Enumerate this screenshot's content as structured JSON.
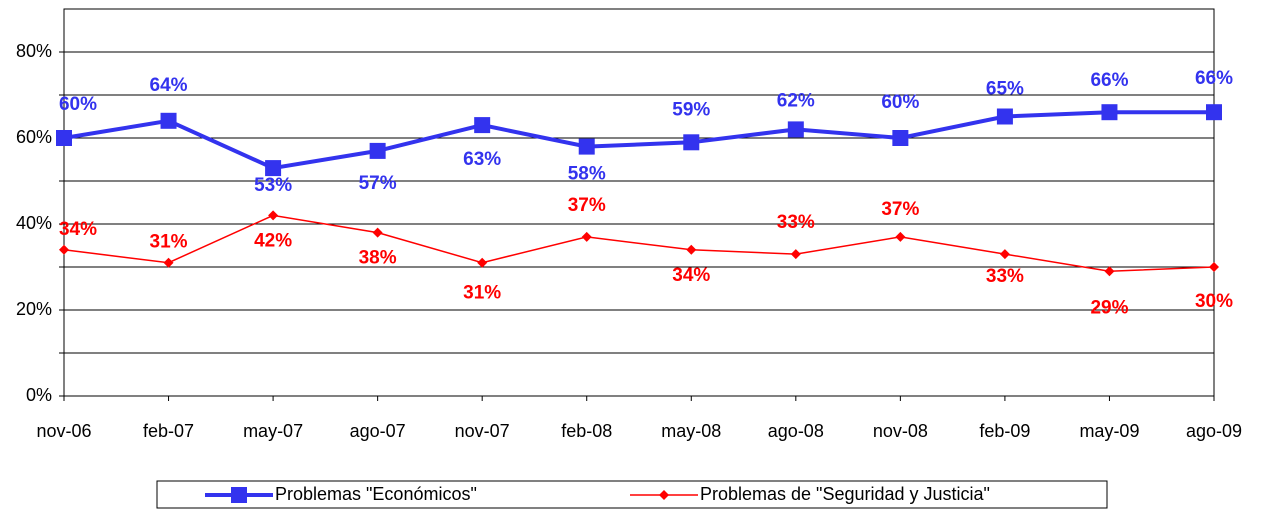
{
  "chart_data": {
    "type": "line",
    "categories": [
      "nov-06",
      "feb-07",
      "may-07",
      "ago-07",
      "nov-07",
      "feb-08",
      "may-08",
      "ago-08",
      "nov-08",
      "feb-09",
      "may-09",
      "ago-09"
    ],
    "series": [
      {
        "name": "Problemas \"Económicos\"",
        "color": "#3333ee",
        "marker": "square",
        "values": [
          60,
          64,
          53,
          57,
          63,
          58,
          59,
          62,
          60,
          65,
          66,
          66
        ],
        "value_labels": [
          "60%",
          "64%",
          "53%",
          "57%",
          "63%",
          "58%",
          "59%",
          "62%",
          "60%",
          "65%",
          "66%",
          "66%"
        ]
      },
      {
        "name": "Problemas de \"Seguridad y Justicia\"",
        "color": "#ff0000",
        "marker": "diamond",
        "values": [
          34,
          31,
          42,
          38,
          31,
          37,
          34,
          33,
          37,
          33,
          29,
          30
        ],
        "value_labels": [
          "34%",
          "31%",
          "42%",
          "38%",
          "31%",
          "37%",
          "34%",
          "33%",
          "37%",
          "33%",
          "29%",
          "30%"
        ]
      }
    ],
    "ylim": [
      0,
      90
    ],
    "yticks": [
      {
        "value": 0,
        "label": "0%"
      },
      {
        "value": 10,
        "label": null
      },
      {
        "value": 20,
        "label": "20%"
      },
      {
        "value": 30,
        "label": null
      },
      {
        "value": 40,
        "label": "40%"
      },
      {
        "value": 50,
        "label": null
      },
      {
        "value": 60,
        "label": "60%"
      },
      {
        "value": 70,
        "label": null
      },
      {
        "value": 80,
        "label": "80%"
      }
    ],
    "grid": true,
    "legend": "bottom"
  }
}
